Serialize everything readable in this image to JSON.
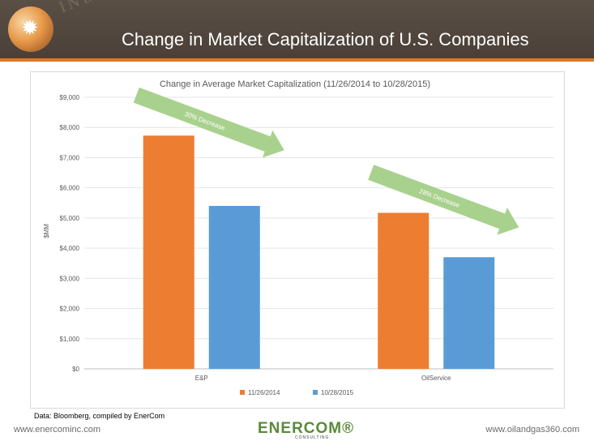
{
  "slide": {
    "title": "Change in Market Capitalization of U.S. Companies",
    "watermark": "INDUSTRY",
    "source_note": "Data: Bloomberg, compiled by EnerCom",
    "footer_left": "www.enercominc.com",
    "footer_right": "www.oilandgas360.com",
    "logo_text": "ENERCOM®",
    "logo_subtext": "CONSULTING"
  },
  "colors": {
    "banner": "#4f453d",
    "accent_orange": "#ed7d31",
    "series_blue": "#5b9bd5",
    "arrow_green": "#a9d18e"
  },
  "chart_data": {
    "type": "bar",
    "title": "Change in Average Market Capitalization (11/26/2014 to 10/28/2015)",
    "xlabel": "",
    "ylabel": "$MM",
    "categories": [
      "E&P",
      "OilService"
    ],
    "series": [
      {
        "name": "11/26/2014",
        "values": [
          7730,
          5170
        ],
        "color": "#ed7d31"
      },
      {
        "name": "10/28/2015",
        "values": [
          5400,
          3700
        ],
        "color": "#5b9bd5"
      }
    ],
    "ylim": [
      0,
      9000
    ],
    "ytick_step": 1000,
    "ytick_labels": [
      "$0",
      "$1,000",
      "$2,000",
      "$3,000",
      "$4,000",
      "$5,000",
      "$6,000",
      "$7,000",
      "$8,000",
      "$9,000"
    ],
    "grid": true,
    "legend_position": "bottom",
    "annotations": [
      {
        "text": "30% Decrease",
        "category": "E&P"
      },
      {
        "text": "28% Decrease",
        "category": "OilService"
      }
    ]
  }
}
